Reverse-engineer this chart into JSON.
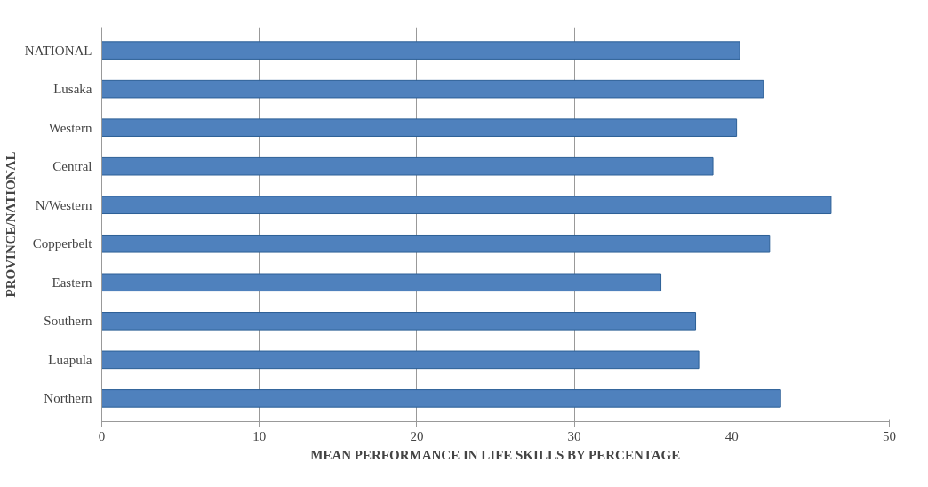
{
  "chart_data": {
    "type": "bar",
    "orientation": "horizontal",
    "xlabel": "MEAN PERFORMANCE IN LIFE SKILLS BY PERCENTAGE",
    "ylabel": "PROVINCE/NATIONAL",
    "categories": [
      "NATIONAL",
      "Lusaka",
      "Western",
      "Central",
      "N/Western",
      "Copperbelt",
      "Eastern",
      "Southern",
      "Luapula",
      "Northern"
    ],
    "values": [
      40.5,
      42.0,
      40.3,
      38.8,
      46.3,
      42.4,
      35.5,
      37.7,
      37.9,
      43.1
    ],
    "color": "#4f81bd",
    "xlim": [
      0,
      50
    ],
    "xticks": [
      0,
      10,
      20,
      30,
      40,
      50
    ],
    "grid": "x"
  }
}
